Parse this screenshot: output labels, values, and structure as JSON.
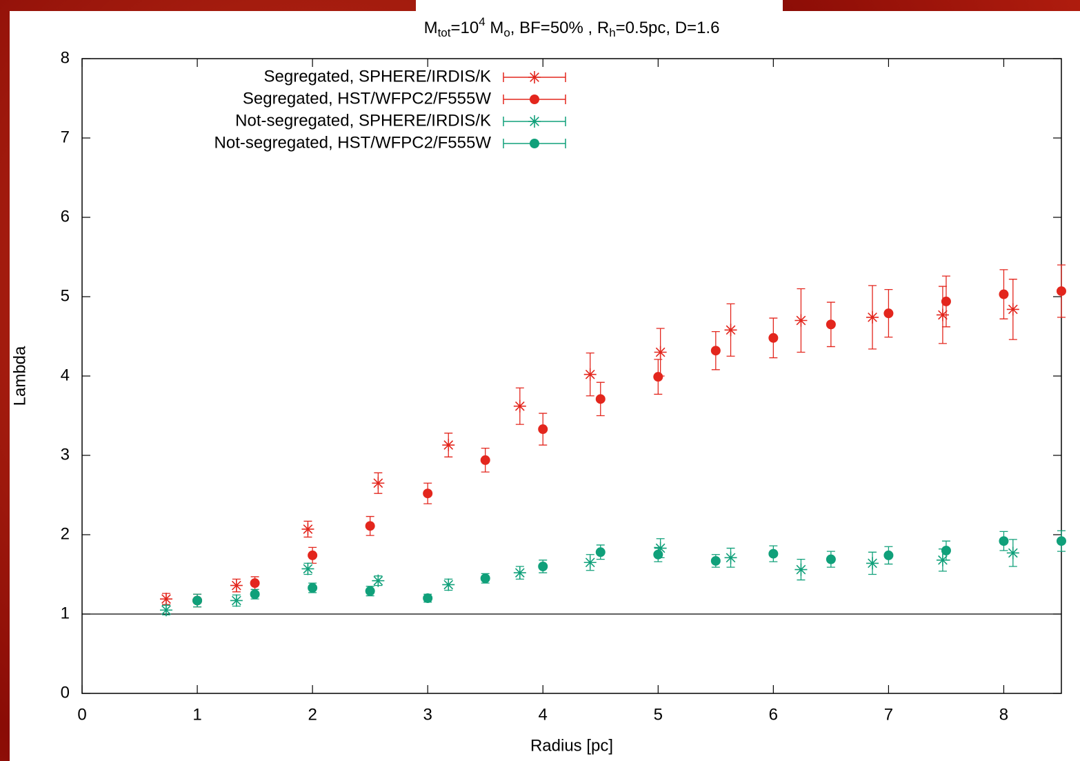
{
  "chart_data": {
    "type": "scatter",
    "title": [
      "M",
      "tot",
      "=10",
      "4",
      " M",
      "o",
      ", BF=50% , R",
      "h",
      "=0.5pc, D=1.6"
    ],
    "title_style": [
      "normal",
      "sub",
      "normal",
      "sup",
      "normal",
      "sub",
      "normal",
      "sub",
      "normal"
    ],
    "x_label": "Radius [pc]",
    "y_label": "Lambda",
    "xlim": [
      0,
      8.5
    ],
    "ylim": [
      0,
      8
    ],
    "xticks": [
      0,
      1,
      2,
      3,
      4,
      5,
      6,
      7,
      8
    ],
    "yticks": [
      0,
      1,
      2,
      3,
      4,
      5,
      6,
      7,
      8
    ],
    "hline": 1,
    "legend": "top-left",
    "series": [
      {
        "name": "Segregated, SPHERE/IRDIS/K",
        "color": "#e3261d",
        "marker": "star",
        "x": [
          0.73,
          1.34,
          1.96,
          2.57,
          3.18,
          3.8,
          4.41,
          5.02,
          5.63,
          6.24,
          6.86,
          7.47,
          8.08
        ],
        "values": [
          1.19,
          1.36,
          2.07,
          2.65,
          3.13,
          3.62,
          4.02,
          4.3,
          4.58,
          4.7,
          4.74,
          4.77,
          4.84
        ],
        "errors": [
          0.07,
          0.08,
          0.1,
          0.13,
          0.15,
          0.23,
          0.27,
          0.3,
          0.33,
          0.4,
          0.4,
          0.36,
          0.38
        ]
      },
      {
        "name": "Segregated, HST/WFPC2/F555W",
        "color": "#e3261d",
        "marker": "circle",
        "x": [
          1,
          1.5,
          2,
          2.5,
          3,
          3.5,
          4,
          4.5,
          5,
          5.5,
          6,
          6.5,
          7,
          7.5,
          8,
          8.5
        ],
        "values": [
          1.17,
          1.39,
          1.74,
          2.11,
          2.52,
          2.94,
          3.33,
          3.71,
          3.99,
          4.32,
          4.48,
          4.65,
          4.79,
          4.94,
          5.03,
          5.07
        ],
        "errors": [
          0.08,
          0.08,
          0.1,
          0.12,
          0.13,
          0.15,
          0.2,
          0.21,
          0.22,
          0.24,
          0.25,
          0.28,
          0.3,
          0.32,
          0.31,
          0.33
        ]
      },
      {
        "name": "Not-segregated, SPHERE/IRDIS/K",
        "color": "#10a07a",
        "marker": "star",
        "x": [
          0.73,
          1.34,
          1.96,
          2.57,
          3.18,
          3.8,
          4.41,
          5.02,
          5.63,
          6.24,
          6.86,
          7.47,
          8.08
        ],
        "values": [
          1.05,
          1.17,
          1.57,
          1.42,
          1.37,
          1.52,
          1.65,
          1.83,
          1.71,
          1.56,
          1.64,
          1.68,
          1.77
        ],
        "errors": [
          0.06,
          0.07,
          0.07,
          0.06,
          0.07,
          0.08,
          0.1,
          0.12,
          0.12,
          0.13,
          0.14,
          0.14,
          0.17
        ]
      },
      {
        "name": "Not-segregated, HST/WFPC2/F555W",
        "color": "#10a07a",
        "marker": "circle",
        "x": [
          1,
          1.5,
          2,
          2.5,
          3,
          3.5,
          4,
          4.5,
          5,
          5.5,
          6,
          6.5,
          7,
          7.5,
          8,
          8.5
        ],
        "values": [
          1.17,
          1.25,
          1.33,
          1.29,
          1.2,
          1.45,
          1.6,
          1.78,
          1.75,
          1.67,
          1.76,
          1.69,
          1.74,
          1.8,
          1.92,
          1.92
        ],
        "errors": [
          0.08,
          0.06,
          0.06,
          0.06,
          0.05,
          0.06,
          0.08,
          0.09,
          0.09,
          0.08,
          0.1,
          0.1,
          0.11,
          0.12,
          0.12,
          0.13
        ]
      }
    ]
  }
}
